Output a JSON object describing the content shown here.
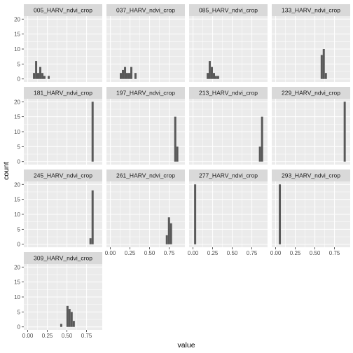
{
  "chart_data": {
    "type": "bar",
    "xlabel": "value",
    "ylabel": "count",
    "xlim": [
      -0.05,
      0.95
    ],
    "ylim": [
      -1,
      21
    ],
    "x_ticks": [
      0.0,
      0.25,
      0.5,
      0.75
    ],
    "x_tick_labels": [
      "0.00",
      "0.25",
      "0.50",
      "0.75"
    ],
    "y_ticks": [
      0,
      5,
      10,
      15,
      20
    ],
    "y_tick_labels": [
      "0",
      "5",
      "10",
      "15",
      "20"
    ],
    "bin_width": 0.0267,
    "grid": true,
    "panel_background": "#ebebeb",
    "strip_background": "#d9d9d9",
    "grid_color": "#ffffff",
    "bar_color": "#595959",
    "panels": [
      {
        "title": "005_HARV_ndvi_crop",
        "bars": [
          [
            0.08,
            2
          ],
          [
            0.107,
            6
          ],
          [
            0.133,
            2
          ],
          [
            0.16,
            4
          ],
          [
            0.187,
            2
          ],
          [
            0.213,
            1
          ],
          [
            0.267,
            1
          ]
        ]
      },
      {
        "title": "037_HARV_ndvi_crop",
        "bars": [
          [
            0.133,
            2
          ],
          [
            0.16,
            3
          ],
          [
            0.187,
            4
          ],
          [
            0.213,
            2
          ],
          [
            0.24,
            2
          ],
          [
            0.267,
            4
          ],
          [
            0.32,
            2
          ]
        ]
      },
      {
        "title": "085_HARV_ndvi_crop",
        "bars": [
          [
            0.187,
            2
          ],
          [
            0.213,
            6
          ],
          [
            0.24,
            4
          ],
          [
            0.267,
            2
          ],
          [
            0.293,
            1
          ],
          [
            0.32,
            1
          ]
        ]
      },
      {
        "title": "133_HARV_ndvi_crop",
        "bars": [
          [
            0.587,
            8
          ],
          [
            0.613,
            10
          ],
          [
            0.64,
            2
          ]
        ]
      },
      {
        "title": "181_HARV_ndvi_crop",
        "bars": [
          [
            0.827,
            20
          ]
        ]
      },
      {
        "title": "197_HARV_ndvi_crop",
        "bars": [
          [
            0.827,
            15
          ],
          [
            0.853,
            5
          ]
        ]
      },
      {
        "title": "213_HARV_ndvi_crop",
        "bars": [
          [
            0.853,
            5
          ],
          [
            0.88,
            15
          ]
        ]
      },
      {
        "title": "229_HARV_ndvi_crop",
        "bars": [
          [
            0.88,
            20
          ]
        ]
      },
      {
        "title": "245_HARV_ndvi_crop",
        "bars": [
          [
            0.8,
            2
          ],
          [
            0.827,
            18
          ]
        ]
      },
      {
        "title": "261_HARV_ndvi_crop",
        "bars": [
          [
            0.72,
            3
          ],
          [
            0.747,
            9
          ],
          [
            0.773,
            7
          ]
        ]
      },
      {
        "title": "277_HARV_ndvi_crop",
        "bars": [
          [
            0.027,
            20
          ]
        ]
      },
      {
        "title": "293_HARV_ndvi_crop",
        "bars": [
          [
            0.053,
            20
          ]
        ]
      },
      {
        "title": "309_HARV_ndvi_crop",
        "bars": [
          [
            0.427,
            1
          ],
          [
            0.507,
            7
          ],
          [
            0.533,
            6
          ],
          [
            0.56,
            5
          ],
          [
            0.587,
            2
          ]
        ]
      }
    ]
  }
}
